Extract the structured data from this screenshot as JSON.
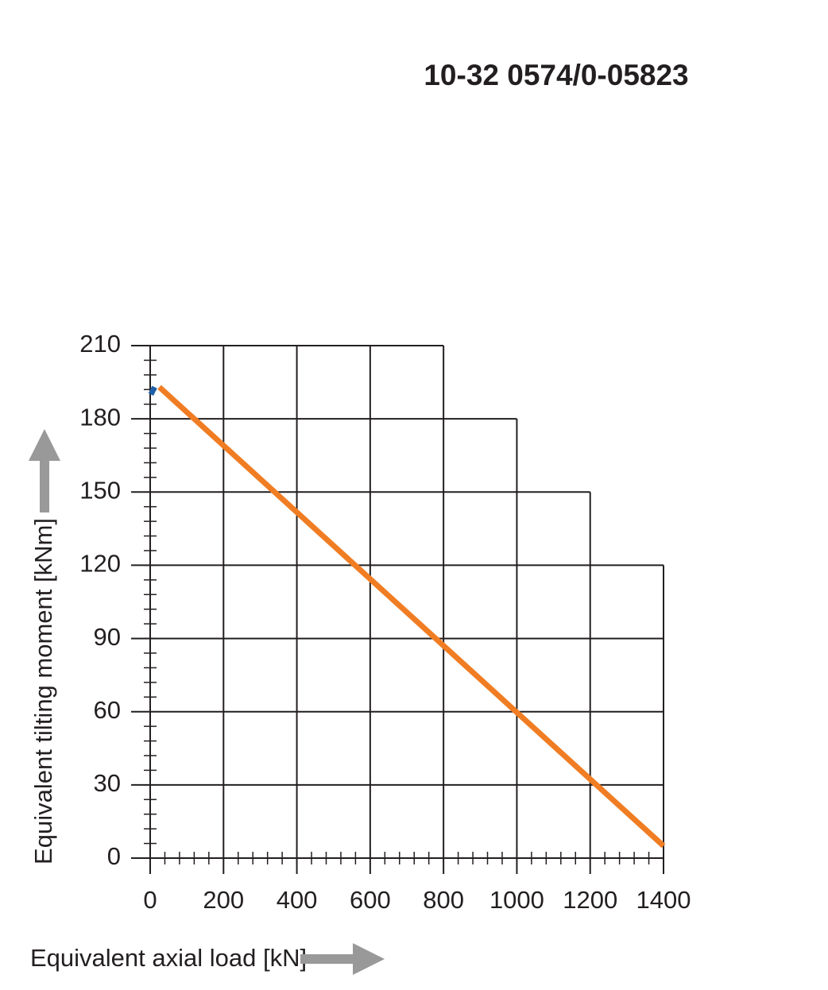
{
  "chart_data": {
    "type": "line",
    "title": "10-32 0574/0-05823",
    "x_label": "Equivalent axial load [kN]",
    "y_label": "Equivalent tilting moment [kNm]",
    "xlim": [
      0,
      1400
    ],
    "ylim": [
      0,
      210
    ],
    "xticks": [
      0,
      200,
      400,
      600,
      800,
      1000,
      1200,
      1400
    ],
    "yticks": [
      0,
      30,
      60,
      90,
      120,
      150,
      180,
      210
    ],
    "xminor": 40,
    "yminor": 6,
    "grid": true,
    "grid_steps": [
      [
        800,
        210
      ],
      [
        1000,
        180
      ],
      [
        1200,
        150
      ],
      [
        1400,
        120
      ]
    ],
    "series": [
      {
        "color": "#1f5fa8",
        "x": [
          2,
          12
        ],
        "values": [
          190,
          193
        ]
      },
      {
        "color": "#f07d23",
        "x": [
          25,
          1400
        ],
        "values": [
          193,
          5
        ]
      }
    ]
  }
}
